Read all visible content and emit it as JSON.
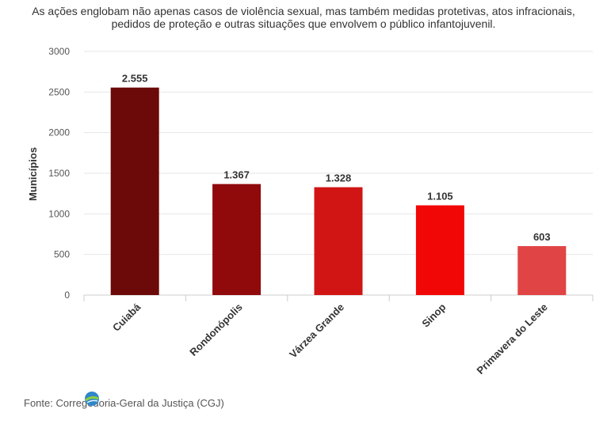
{
  "subtitle": "As ações englobam não apenas casos de violência sexual, mas também medidas protetivas, atos infracionais, pedidos de proteção e outras situações que envolvem o público infantojuvenil.",
  "source": "Fonte: Corregedoria-Geral da Justiça (CGJ)",
  "chart_data": {
    "type": "bar",
    "subtitle": "As ações englobam não apenas casos de violência sexual, mas também medidas protetivas, atos infracionais, pedidos de proteção e outras situações que envolvem o público infantojuvenil.",
    "categories": [
      "Cuiabá",
      "Rondonópolis",
      "Várzea Grande",
      "Sinop",
      "Primavera do Leste"
    ],
    "values": [
      2555,
      1367,
      1328,
      1105,
      603
    ],
    "data_labels": [
      "2.555",
      "1.367",
      "1.328",
      "1.105",
      "603"
    ],
    "bar_colors": [
      "#6b0a08",
      "#900a0c",
      "#d11515",
      "#f20707",
      "#e04444"
    ],
    "xlabel": "",
    "ylabel": "Municípios",
    "ylim": [
      0,
      3000
    ],
    "yticks": [
      0,
      500,
      1000,
      1500,
      2000,
      2500,
      3000
    ],
    "grid": true,
    "legend": "none"
  }
}
